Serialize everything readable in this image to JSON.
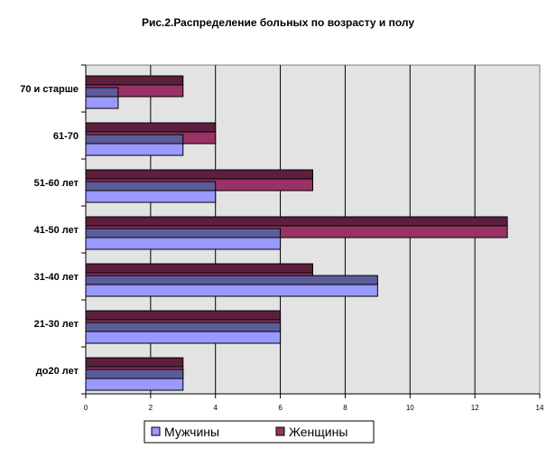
{
  "chart_data": {
    "type": "bar",
    "orientation": "horizontal",
    "title": "Рис.2.Распределение больных по возрасту и полу",
    "categories": [
      "70 и старше",
      "61-70",
      "51-60 лет",
      "41-50 лет",
      "31-40 лет",
      "21-30 лет",
      "до20 лет"
    ],
    "series": [
      {
        "name": "Мужчины",
        "color": "#9999ff",
        "values": [
          1,
          3,
          4,
          6,
          9,
          6,
          3
        ]
      },
      {
        "name": "Женщины",
        "color": "#993366",
        "values": [
          3,
          4,
          7,
          13,
          7,
          6,
          3
        ]
      }
    ],
    "xlim": [
      0,
      14
    ],
    "xticks": [
      "0",
      "2",
      "4",
      "6",
      "8",
      "10",
      "12",
      "14"
    ],
    "grid": true,
    "plot_background": "#e3e3e3",
    "legend_position": "bottom"
  }
}
